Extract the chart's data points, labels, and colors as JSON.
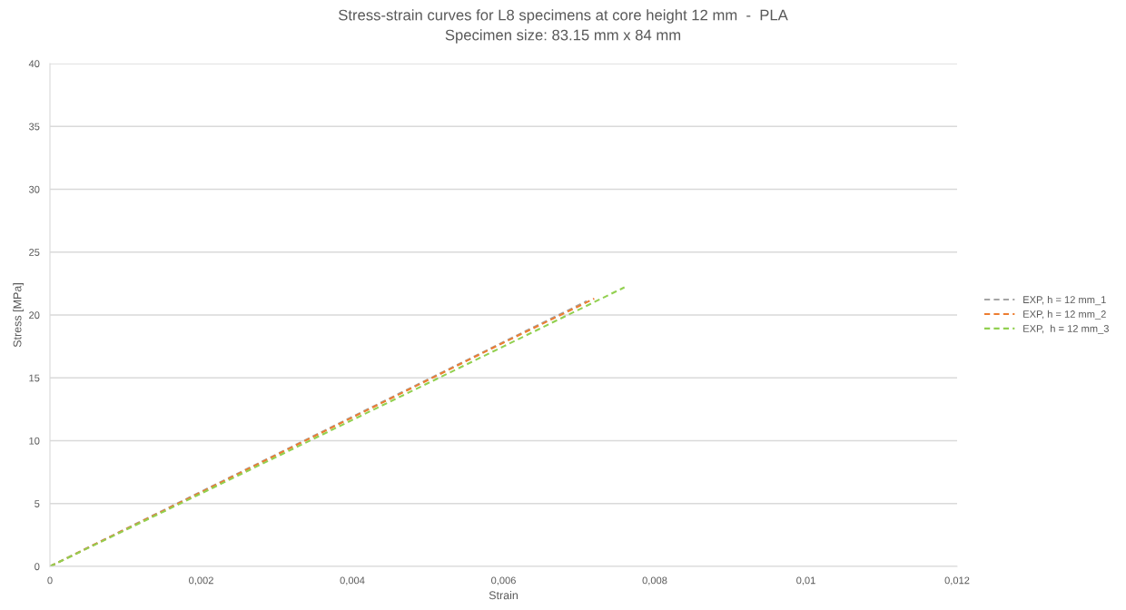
{
  "chart_data": {
    "type": "line",
    "title": "Stress-strain curves for L8 specimens at core height 12 mm  -  PLA",
    "subtitle": "Specimen size: 83.15 mm x 84 mm",
    "xlabel": "Strain",
    "ylabel": "Stress [MPa]",
    "series": [
      {
        "name": "EXP, h = 12 mm_1",
        "color": "#a5a5a5",
        "x": [
          0,
          0.002,
          0.004,
          0.006,
          0.0071
        ],
        "values": [
          0,
          5.95,
          11.9,
          17.85,
          21.1
        ]
      },
      {
        "name": "EXP, h = 12 mm_2",
        "color": "#ed7d31",
        "x": [
          0,
          0.002,
          0.004,
          0.006,
          0.0072
        ],
        "values": [
          0,
          5.9,
          11.85,
          17.8,
          21.3
        ]
      },
      {
        "name": "EXP,  h = 12 mm_3",
        "color": "#92d050",
        "x": [
          0,
          0.002,
          0.004,
          0.006,
          0.0076
        ],
        "values": [
          0,
          5.8,
          11.65,
          17.5,
          22.2
        ]
      }
    ],
    "xlim": [
      0,
      0.012
    ],
    "xticks": [
      0,
      {
        "value": 0.002,
        "label": "0,002"
      },
      {
        "value": 0.004,
        "label": "0,004"
      },
      {
        "value": 0.006,
        "label": "0,006"
      },
      {
        "value": 0.008,
        "label": "0,008"
      },
      {
        "value": 0.01,
        "label": "0,01"
      },
      {
        "value": 0.012,
        "label": "0,012"
      }
    ],
    "ylim": [
      0,
      40
    ],
    "yticks": [
      0,
      5,
      10,
      15,
      20,
      25,
      30,
      35,
      40
    ],
    "grid": "y",
    "legend": "right",
    "marker": "none",
    "line_style": "dashed"
  }
}
